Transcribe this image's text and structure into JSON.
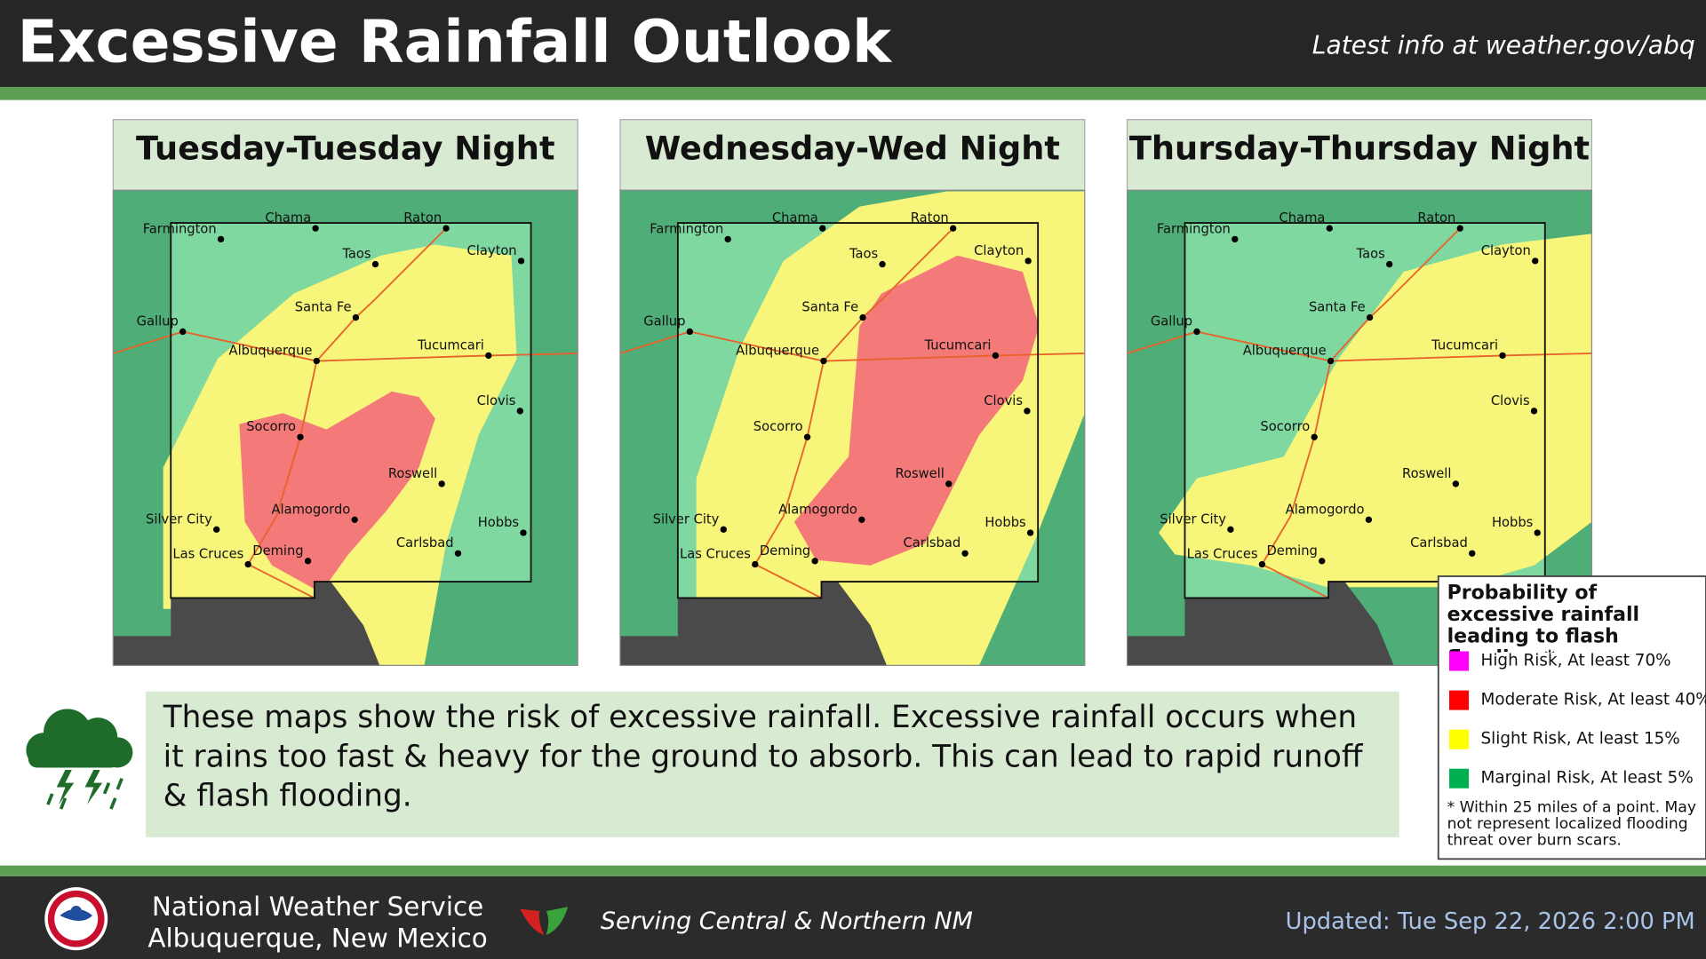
{
  "header": {
    "title": "Excessive Rainfall Outlook",
    "link": "Latest info at weather.gov/abq"
  },
  "panels": [
    {
      "title": "Tuesday-Tuesday Night"
    },
    {
      "title": "Wednesday-Wed Night"
    },
    {
      "title": "Thursday-Thursday Night"
    }
  ],
  "cities": [
    "Farmington",
    "Chama",
    "Raton",
    "Taos",
    "Clayton",
    "Gallup",
    "Santa Fe",
    "Albuquerque",
    "Tucumcari",
    "Clovis",
    "Socorro",
    "Roswell",
    "Silver City",
    "Alamogordo",
    "Hobbs",
    "Las Cruces",
    "Carlsbad",
    "Deming"
  ],
  "description": "These maps show the risk of excessive rainfall. Excessive rainfall occurs when it rains too fast & heavy for the ground to absorb. This can lead to rapid runoff & flash flooding.",
  "legend": {
    "title": "Probability of excessive rainfall leading to flash flooding.*",
    "items": [
      {
        "label": "High Risk, At least 70%",
        "color": "#ff00ff"
      },
      {
        "label": "Moderate Risk, At least 40%",
        "color": "#ff0000"
      },
      {
        "label": "Slight Risk, At least 15%",
        "color": "#ffff00"
      },
      {
        "label": "Marginal Risk, At least 5%",
        "color": "#00b050"
      }
    ],
    "footnote": "* Within 25 miles of a point. May not represent localized flooding threat over burn scars."
  },
  "footer": {
    "office": "National Weather Service",
    "location": "Albuquerque, New Mexico",
    "tagline": "Serving Central & Northern NM",
    "updated": "Updated: Tue Sep 22, 2026 2:00 PM"
  }
}
